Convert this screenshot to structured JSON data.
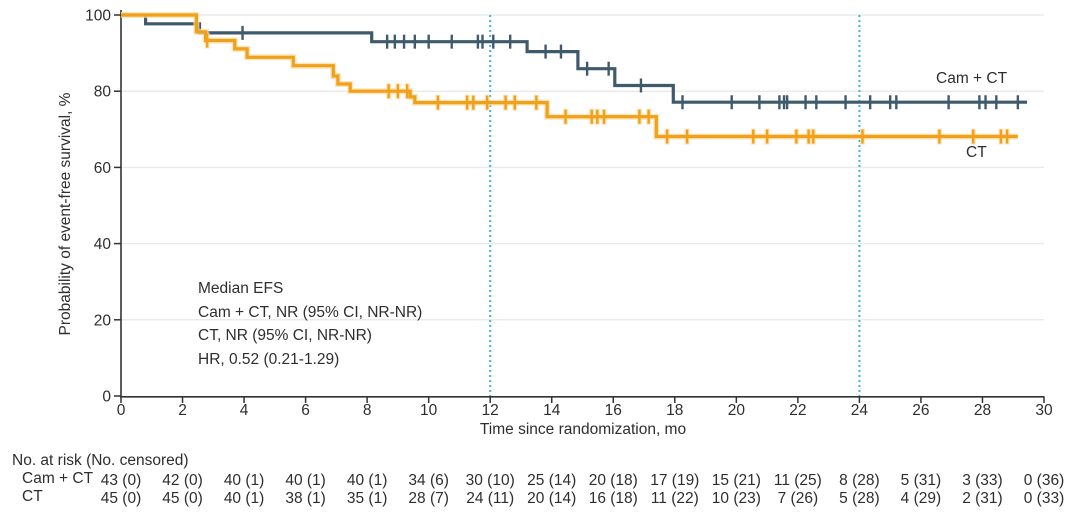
{
  "labels": {
    "ylabel": "Probability of event-free survival, %",
    "xlabel": "Time since randomization, mo"
  },
  "legend": {
    "cam_ct_label": "Cam + CT",
    "ct_label": "CT"
  },
  "annotation": {
    "lines": [
      "Median EFS",
      "Cam + CT, NR (95% CI, NR-NR)",
      "CT, NR (95% CI, NR-NR)",
      "HR, 0.52 (0.21-1.29)"
    ]
  },
  "risk_table": {
    "title": "No. at risk (No. censored)",
    "months": [
      0,
      2,
      4,
      6,
      8,
      10,
      12,
      14,
      16,
      18,
      20,
      22,
      24,
      26,
      28,
      30
    ],
    "rows": [
      {
        "label": "Cam + CT",
        "values": [
          "43 (0)",
          "42 (0)",
          "40 (1)",
          "40 (1)",
          "40 (1)",
          "34 (6)",
          "30 (10)",
          "25 (14)",
          "20 (18)",
          "17 (19)",
          "15 (21)",
          "11 (25)",
          "8 (28)",
          "5 (31)",
          "3 (33)",
          "0 (36)"
        ]
      },
      {
        "label": "CT",
        "values": [
          "45 (0)",
          "45 (0)",
          "40 (1)",
          "38 (1)",
          "35 (1)",
          "28 (7)",
          "24 (11)",
          "20 (14)",
          "16 (18)",
          "11 (22)",
          "10 (23)",
          "7 (26)",
          "5 (28)",
          "4 (29)",
          "2 (31)",
          "0 (33)"
        ]
      }
    ]
  },
  "chart_data": {
    "type": "line",
    "subtype": "kaplan-meier-step",
    "xlabel": "Time since randomization, mo",
    "ylabel": "Probability of event-free survival, %",
    "xlim": [
      0,
      30
    ],
    "ylim": [
      0,
      100
    ],
    "xticks": [
      0,
      2,
      4,
      6,
      8,
      10,
      12,
      14,
      16,
      18,
      20,
      22,
      24,
      26,
      28,
      30
    ],
    "yticks": [
      0,
      20,
      40,
      60,
      80,
      100
    ],
    "grid": "horizontal",
    "reference_months": [
      12,
      24
    ],
    "legend_position": "right-of-curves",
    "colors": {
      "axis": "#333333",
      "grid": "#EBEBEB",
      "reference": "#3CB4E5",
      "text": "#2E2E2E"
    },
    "series": [
      {
        "id": "cam-ct",
        "name": "Cam + CT",
        "color": "#3E5A6C",
        "start_pct": 100,
        "drops": [
          [
            0.8,
            97.7
          ],
          [
            2.55,
            95.3
          ],
          [
            8.15,
            93.0
          ],
          [
            13.2,
            90.4
          ],
          [
            14.85,
            85.9
          ],
          [
            16.05,
            81.5
          ],
          [
            17.95,
            77.1
          ]
        ],
        "end_month": 29.45,
        "censor_months": [
          3.95,
          8.65,
          8.9,
          9.2,
          9.55,
          10.0,
          10.75,
          11.6,
          11.75,
          12.1,
          12.65,
          13.8,
          14.3,
          15.15,
          15.85,
          16.9,
          18.25,
          19.85,
          20.75,
          21.4,
          21.55,
          21.65,
          22.25,
          22.6,
          23.55,
          24.35,
          25.0,
          25.2,
          26.9,
          27.9,
          28.1,
          28.45,
          29.15
        ]
      },
      {
        "id": "ct",
        "name": "CT",
        "color": "#F0A019",
        "halo": "#F9DCA6",
        "start_pct": 100,
        "drops": [
          [
            2.45,
            95.6
          ],
          [
            2.75,
            93.3
          ],
          [
            3.7,
            91.1
          ],
          [
            4.1,
            88.9
          ],
          [
            5.6,
            86.7
          ],
          [
            6.9,
            84.0
          ],
          [
            7.05,
            81.9
          ],
          [
            7.45,
            80.0
          ],
          [
            9.4,
            78.5
          ],
          [
            9.55,
            77.0
          ],
          [
            13.85,
            73.3
          ],
          [
            17.4,
            68.1
          ]
        ],
        "end_month": 29.15,
        "censor_months": [
          2.8,
          8.7,
          9.0,
          9.3,
          10.3,
          11.25,
          11.45,
          11.9,
          12.5,
          12.8,
          13.5,
          14.45,
          15.3,
          15.48,
          15.7,
          16.85,
          17.15,
          17.75,
          18.4,
          20.55,
          21.0,
          21.95,
          22.35,
          22.5,
          24.1,
          26.6,
          27.7,
          28.6,
          28.8
        ]
      }
    ]
  }
}
